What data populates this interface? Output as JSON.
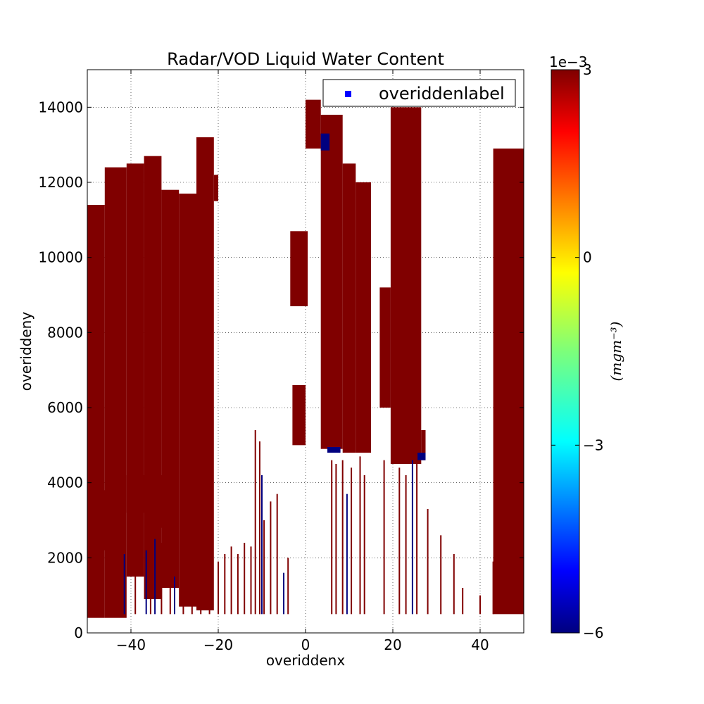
{
  "chart_data": {
    "type": "heatmap",
    "title": "Radar/VOD Liquid Water Content",
    "xlabel": "overiddenx",
    "ylabel": "overiddeny",
    "xlim": [
      -50,
      50
    ],
    "ylim": [
      0,
      15000
    ],
    "grid": true,
    "x_ticks": [
      -40,
      -20,
      0,
      20,
      40
    ],
    "x_tick_labels": [
      "−40",
      "−20",
      "0",
      "20",
      "40"
    ],
    "y_ticks": [
      0,
      2000,
      4000,
      6000,
      8000,
      10000,
      12000,
      14000
    ],
    "y_tick_labels": [
      "0",
      "2000",
      "4000",
      "6000",
      "8000",
      "10000",
      "12000",
      "14000"
    ],
    "legend": {
      "label": "overiddenlabel",
      "placement": "upper-right",
      "marker_color": "#0000ff"
    },
    "colorbar": {
      "label": "(mgm⁻³)",
      "multiplier": "1e−3",
      "min": -0.006,
      "max": 0.003,
      "colormap": "jet",
      "ticks": [
        3,
        0,
        -3,
        -6
      ],
      "tick_labels": [
        "3",
        "0",
        "−3",
        "−6"
      ]
    },
    "colors": {
      "high": "#800000",
      "low": "#00007f"
    },
    "regions": [
      {
        "value": 0.003,
        "x": [
          -50,
          -46
        ],
        "y": [
          400,
          11400
        ]
      },
      {
        "value": 0.003,
        "x": [
          -46,
          -41
        ],
        "y": [
          400,
          12400
        ]
      },
      {
        "value": 0.003,
        "x": [
          -41,
          -37
        ],
        "y": [
          1500,
          12500
        ]
      },
      {
        "value": 0.003,
        "x": [
          -37,
          -33
        ],
        "y": [
          900,
          12700
        ]
      },
      {
        "value": 0.003,
        "x": [
          -33,
          -29
        ],
        "y": [
          1200,
          11800
        ]
      },
      {
        "value": 0.003,
        "x": [
          -29,
          -25
        ],
        "y": [
          700,
          11700
        ]
      },
      {
        "value": 0.003,
        "x": [
          -25,
          -21
        ],
        "y": [
          600,
          13200
        ]
      },
      {
        "value": 0.003,
        "x": [
          -21,
          -20
        ],
        "y": [
          11500,
          12200
        ]
      },
      {
        "value": 0.003,
        "x": [
          -3.5,
          0.5
        ],
        "y": [
          8700,
          10700
        ]
      },
      {
        "value": 0.003,
        "x": [
          -3,
          0
        ],
        "y": [
          5000,
          6600
        ]
      },
      {
        "value": 0.003,
        "x": [
          0,
          3.5
        ],
        "y": [
          12900,
          14200
        ]
      },
      {
        "value": 0.003,
        "x": [
          3.5,
          8.5
        ],
        "y": [
          4900,
          13800
        ]
      },
      {
        "value": 0.003,
        "x": [
          8.5,
          11.5
        ],
        "y": [
          4800,
          12500
        ]
      },
      {
        "value": 0.003,
        "x": [
          11.5,
          15
        ],
        "y": [
          4800,
          12000
        ]
      },
      {
        "value": 0.003,
        "x": [
          17,
          19.5
        ],
        "y": [
          6000,
          9200
        ]
      },
      {
        "value": 0.003,
        "x": [
          19.5,
          26.5
        ],
        "y": [
          4500,
          14000
        ]
      },
      {
        "value": 0.003,
        "x": [
          26.5,
          27.5
        ],
        "y": [
          4600,
          5400
        ]
      },
      {
        "value": 0.003,
        "x": [
          43,
          50
        ],
        "y": [
          500,
          12900
        ]
      },
      {
        "value": 0.003,
        "x": [
          -41,
          -35
        ],
        "y": [
          3200,
          4200
        ]
      },
      {
        "value": 0.003,
        "x": [
          -47,
          -44
        ],
        "y": [
          2200,
          3800
        ]
      },
      {
        "value": 0.003,
        "x": [
          -35,
          -31
        ],
        "y": [
          2800,
          4200
        ]
      },
      {
        "value": -0.006,
        "x": [
          3.5,
          5.5
        ],
        "y": [
          12850,
          13300
        ]
      },
      {
        "value": -0.006,
        "x": [
          5,
          8
        ],
        "y": [
          4800,
          4950
        ]
      },
      {
        "value": -0.006,
        "x": [
          25.5,
          27.5
        ],
        "y": [
          4600,
          4800
        ]
      }
    ],
    "spikes": [
      {
        "value": 0.003,
        "x": -44,
        "y": 2900
      },
      {
        "value": 0.003,
        "x": -42,
        "y": 1900
      },
      {
        "value": -0.006,
        "x": -41.5,
        "y": 2100
      },
      {
        "value": 0.003,
        "x": -39,
        "y": 2600
      },
      {
        "value": -0.006,
        "x": -36.5,
        "y": 2200
      },
      {
        "value": 0.003,
        "x": -35.5,
        "y": 2800
      },
      {
        "value": -0.006,
        "x": -34.5,
        "y": 2500
      },
      {
        "value": 0.003,
        "x": -33,
        "y": 2400
      },
      {
        "value": 0.003,
        "x": -31,
        "y": 1800
      },
      {
        "value": -0.006,
        "x": -30,
        "y": 1500
      },
      {
        "value": 0.003,
        "x": -28,
        "y": 1700
      },
      {
        "value": 0.003,
        "x": -26,
        "y": 2200
      },
      {
        "value": 0.003,
        "x": -24,
        "y": 1500
      },
      {
        "value": 0.003,
        "x": -22,
        "y": 2000
      },
      {
        "value": 0.003,
        "x": -20,
        "y": 1900
      },
      {
        "value": 0.003,
        "x": -18.5,
        "y": 2100
      },
      {
        "value": 0.003,
        "x": -17,
        "y": 2300
      },
      {
        "value": 0.003,
        "x": -15.5,
        "y": 2100
      },
      {
        "value": 0.003,
        "x": -14,
        "y": 2400
      },
      {
        "value": 0.003,
        "x": -12.5,
        "y": 2300
      },
      {
        "value": 0.003,
        "x": -11.5,
        "y": 5400
      },
      {
        "value": 0.003,
        "x": -10.5,
        "y": 5100
      },
      {
        "value": -0.006,
        "x": -10,
        "y": 4200
      },
      {
        "value": 0.003,
        "x": -9.5,
        "y": 3000
      },
      {
        "value": 0.003,
        "x": -8,
        "y": 3500
      },
      {
        "value": 0.003,
        "x": -6.5,
        "y": 3700
      },
      {
        "value": -0.006,
        "x": -5,
        "y": 1600
      },
      {
        "value": 0.003,
        "x": -4,
        "y": 2000
      },
      {
        "value": 0.003,
        "x": 6,
        "y": 4600
      },
      {
        "value": 0.003,
        "x": 7,
        "y": 4500
      },
      {
        "value": 0.003,
        "x": 8.5,
        "y": 4600
      },
      {
        "value": -0.006,
        "x": 9.5,
        "y": 3700
      },
      {
        "value": 0.003,
        "x": 10.5,
        "y": 4400
      },
      {
        "value": 0.003,
        "x": 12.5,
        "y": 4700
      },
      {
        "value": 0.003,
        "x": 13.5,
        "y": 4200
      },
      {
        "value": 0.003,
        "x": 18,
        "y": 4600
      },
      {
        "value": 0.003,
        "x": 21.5,
        "y": 4400
      },
      {
        "value": 0.003,
        "x": 23,
        "y": 4200
      },
      {
        "value": -0.006,
        "x": 24.5,
        "y": 4600
      },
      {
        "value": 0.003,
        "x": 25.5,
        "y": 5000
      },
      {
        "value": 0.003,
        "x": 28,
        "y": 3300
      },
      {
        "value": 0.003,
        "x": 31,
        "y": 2600
      },
      {
        "value": 0.003,
        "x": 34,
        "y": 2100
      },
      {
        "value": 0.003,
        "x": 36,
        "y": 1200
      },
      {
        "value": 0.003,
        "x": 40,
        "y": 1000
      },
      {
        "value": 0.003,
        "x": 43,
        "y": 1900
      }
    ]
  }
}
